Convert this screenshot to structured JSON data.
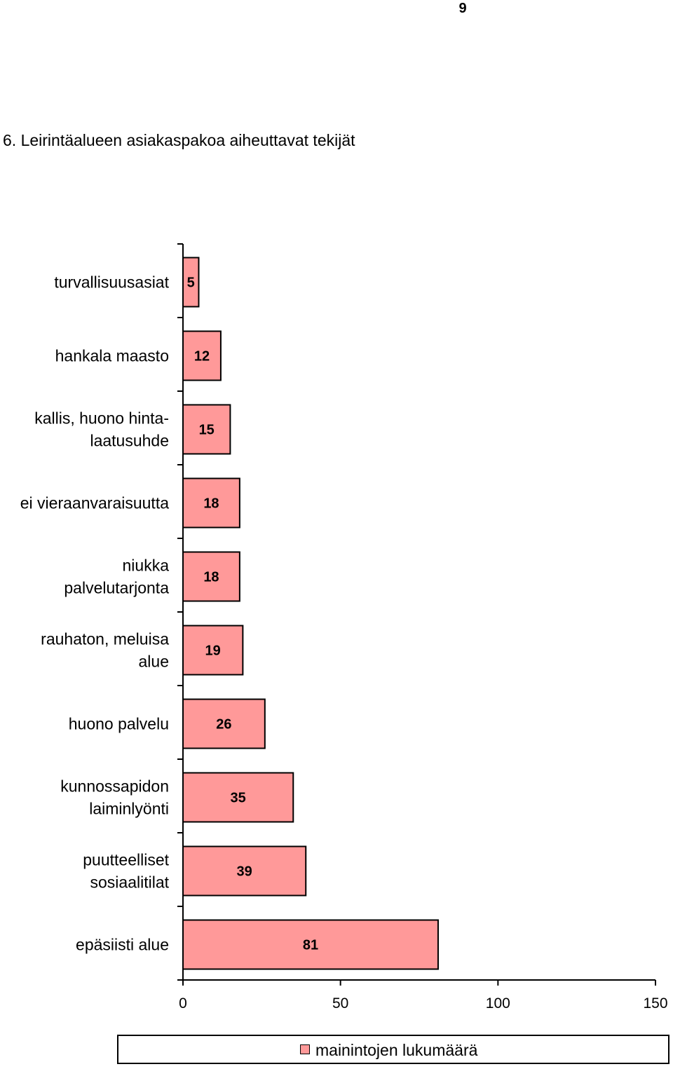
{
  "page": {
    "number": "9"
  },
  "section_title": "6. Leirintäalueen asiakaspakoa aiheuttavat tekijät",
  "chart_data": {
    "type": "bar",
    "orientation": "horizontal",
    "title": "",
    "xlabel": "",
    "ylabel": "",
    "xlim": [
      0,
      150
    ],
    "x_ticks": [
      "0",
      "50",
      "100",
      "150"
    ],
    "grid": false,
    "legend_position": "bottom",
    "categories": [
      [
        "turvallisuusasiat"
      ],
      [
        "hankala maasto"
      ],
      [
        "kallis, huono hinta-",
        "laatusuhde"
      ],
      [
        "ei vieraanvaraisuutta"
      ],
      [
        "niukka",
        "palvelutarjonta"
      ],
      [
        "rauhaton, meluisa",
        "alue"
      ],
      [
        "huono palvelu"
      ],
      [
        "kunnossapidon",
        "laiminlyönti"
      ],
      [
        "puutteelliset",
        "sosiaalitilat"
      ],
      [
        "epäsiisti alue"
      ]
    ],
    "series": [
      {
        "name": "mainintojen lukumäärä",
        "color": "#FF9999",
        "values": [
          5,
          12,
          15,
          18,
          18,
          19,
          26,
          35,
          39,
          81
        ]
      }
    ]
  }
}
